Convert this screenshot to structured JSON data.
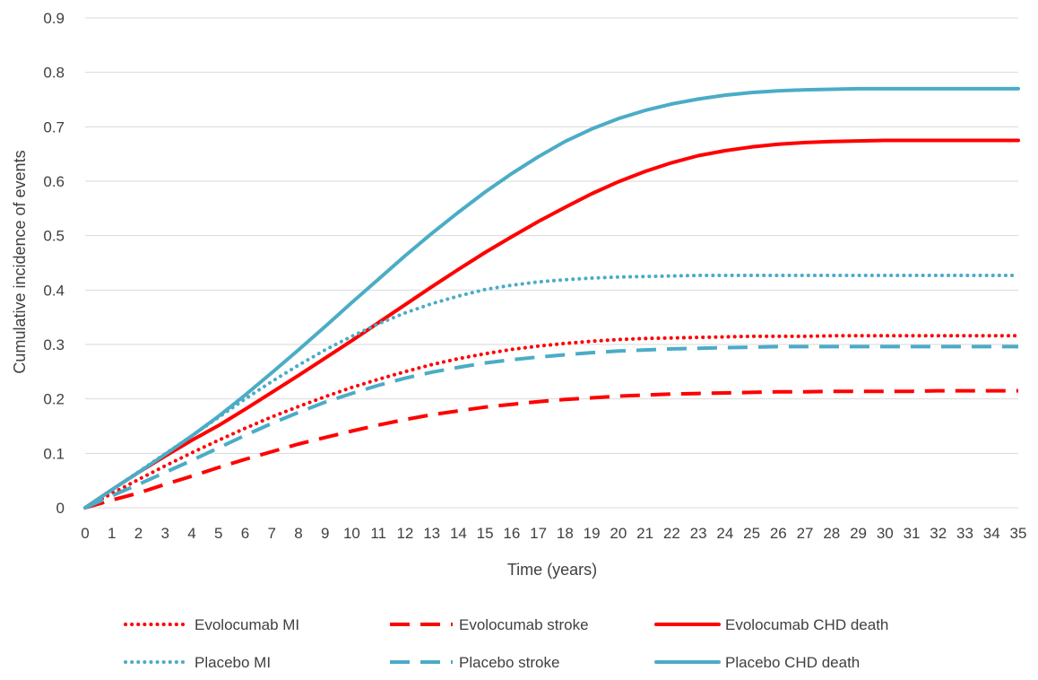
{
  "chart_data": {
    "type": "line",
    "title": "",
    "xlabel": "Time (years)",
    "ylabel": "Cumulative incidence of events",
    "xlim": [
      0,
      35
    ],
    "ylim": [
      0,
      0.9
    ],
    "x_ticks": [
      "0",
      "1",
      "2",
      "3",
      "4",
      "5",
      "6",
      "7",
      "8",
      "9",
      "10",
      "11",
      "12",
      "13",
      "14",
      "15",
      "16",
      "17",
      "18",
      "19",
      "20",
      "21",
      "22",
      "23",
      "24",
      "25",
      "26",
      "27",
      "28",
      "29",
      "30",
      "31",
      "32",
      "33",
      "34",
      "35"
    ],
    "y_ticks": [
      "0",
      "0.1",
      "0.2",
      "0.3",
      "0.4",
      "0.5",
      "0.6",
      "0.7",
      "0.8",
      "0.9"
    ],
    "grid": "horizontal",
    "legend_position": "bottom",
    "x": [
      0,
      1,
      2,
      3,
      4,
      5,
      6,
      7,
      8,
      9,
      10,
      11,
      12,
      13,
      14,
      15,
      16,
      17,
      18,
      19,
      20,
      21,
      22,
      23,
      24,
      25,
      26,
      27,
      28,
      29,
      30,
      31,
      32,
      33,
      34,
      35
    ],
    "series": [
      {
        "name": "Evolocumab MI",
        "color": "#ff0000",
        "style": "dotted",
        "values": [
          0,
          0.026,
          0.052,
          0.077,
          0.101,
          0.124,
          0.146,
          0.167,
          0.186,
          0.204,
          0.221,
          0.236,
          0.25,
          0.263,
          0.274,
          0.283,
          0.291,
          0.297,
          0.302,
          0.306,
          0.309,
          0.311,
          0.312,
          0.313,
          0.314,
          0.315,
          0.315,
          0.315,
          0.316,
          0.316,
          0.316,
          0.316,
          0.316,
          0.316,
          0.316,
          0.316
        ]
      },
      {
        "name": "Evolocumab stroke",
        "color": "#ff0000",
        "style": "dashed",
        "values": [
          0,
          0.014,
          0.027,
          0.043,
          0.058,
          0.074,
          0.089,
          0.103,
          0.117,
          0.129,
          0.141,
          0.152,
          0.162,
          0.171,
          0.178,
          0.185,
          0.19,
          0.195,
          0.199,
          0.202,
          0.205,
          0.207,
          0.209,
          0.21,
          0.211,
          0.212,
          0.213,
          0.213,
          0.214,
          0.214,
          0.214,
          0.214,
          0.215,
          0.215,
          0.215,
          0.215
        ]
      },
      {
        "name": "Evolocumab CHD death",
        "color": "#ff0000",
        "style": "solid",
        "values": [
          0,
          0.033,
          0.065,
          0.095,
          0.124,
          0.151,
          0.181,
          0.212,
          0.243,
          0.275,
          0.307,
          0.34,
          0.373,
          0.406,
          0.438,
          0.469,
          0.498,
          0.526,
          0.552,
          0.577,
          0.599,
          0.618,
          0.634,
          0.647,
          0.656,
          0.663,
          0.668,
          0.671,
          0.673,
          0.674,
          0.675,
          0.675,
          0.675,
          0.675,
          0.675,
          0.675
        ]
      },
      {
        "name": "Placebo MI",
        "color": "#4bacc6",
        "style": "dotted",
        "values": [
          0,
          0.033,
          0.066,
          0.099,
          0.132,
          0.166,
          0.2,
          0.232,
          0.262,
          0.29,
          0.315,
          0.338,
          0.358,
          0.375,
          0.389,
          0.401,
          0.409,
          0.415,
          0.419,
          0.422,
          0.424,
          0.425,
          0.426,
          0.427,
          0.427,
          0.427,
          0.427,
          0.427,
          0.427,
          0.427,
          0.427,
          0.427,
          0.427,
          0.427,
          0.427,
          0.427
        ]
      },
      {
        "name": "Placebo stroke",
        "color": "#4bacc6",
        "style": "dashed",
        "values": [
          0,
          0.022,
          0.043,
          0.065,
          0.087,
          0.11,
          0.133,
          0.155,
          0.175,
          0.194,
          0.21,
          0.225,
          0.238,
          0.249,
          0.258,
          0.266,
          0.272,
          0.277,
          0.281,
          0.285,
          0.288,
          0.29,
          0.292,
          0.293,
          0.294,
          0.295,
          0.296,
          0.296,
          0.296,
          0.296,
          0.296,
          0.296,
          0.296,
          0.296,
          0.296,
          0.296
        ]
      },
      {
        "name": "Placebo CHD death",
        "color": "#4bacc6",
        "style": "solid",
        "values": [
          0,
          0.033,
          0.065,
          0.098,
          0.132,
          0.168,
          0.207,
          0.248,
          0.29,
          0.333,
          0.377,
          0.42,
          0.463,
          0.504,
          0.543,
          0.58,
          0.614,
          0.645,
          0.673,
          0.696,
          0.715,
          0.73,
          0.742,
          0.751,
          0.758,
          0.763,
          0.766,
          0.768,
          0.769,
          0.77,
          0.77,
          0.77,
          0.77,
          0.77,
          0.77,
          0.77
        ]
      }
    ]
  }
}
